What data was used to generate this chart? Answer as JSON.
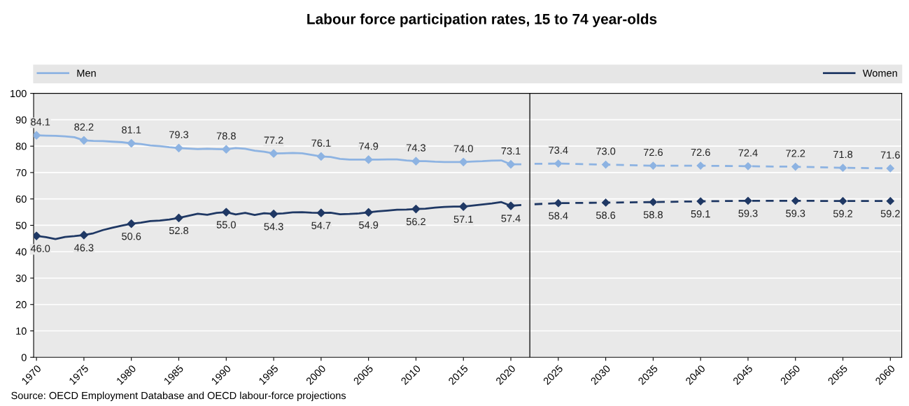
{
  "chart_data": {
    "type": "line",
    "title": "Labour force participation rates, 15 to 74 year-olds",
    "annotations": [
      "Source: OECD Employment Database and OECD labour-force projections"
    ],
    "xlim": [
      1969.7,
      2061.2
    ],
    "xticks": [
      1970,
      1975,
      1980,
      1985,
      1990,
      1995,
      2000,
      2005,
      2010,
      2015,
      2020,
      2025,
      2030,
      2035,
      2040,
      2045,
      2050,
      2055,
      2060
    ],
    "ylim": [
      0,
      100
    ],
    "yticks": [
      0,
      10,
      20,
      30,
      40,
      50,
      60,
      70,
      80,
      90,
      100
    ],
    "grid": "y",
    "legend": "top",
    "marker": "diamond",
    "ref_lines": [
      {
        "axis": "x",
        "value": 2022,
        "color": "#000000"
      }
    ],
    "series": [
      {
        "name": "Men",
        "color": "#8db3e2",
        "line_style": "solid",
        "marker": "none",
        "x": [
          1970,
          1971,
          1972,
          1973,
          1974,
          1975,
          1976,
          1977,
          1978,
          1979,
          1980,
          1981,
          1982,
          1983,
          1984,
          1985,
          1986,
          1987,
          1988,
          1989,
          1990,
          1991,
          1992,
          1993,
          1994,
          1995,
          1996,
          1997,
          1998,
          1999,
          2000,
          2001,
          2002,
          2003,
          2004,
          2005,
          2006,
          2007,
          2008,
          2009,
          2010,
          2011,
          2012,
          2013,
          2014,
          2015,
          2016,
          2017,
          2018,
          2019,
          2020,
          2021
        ],
        "values": [
          84.1,
          84.0,
          83.9,
          83.7,
          83.4,
          82.2,
          82.0,
          81.9,
          81.7,
          81.5,
          81.1,
          80.8,
          80.3,
          80.0,
          79.6,
          79.3,
          79.1,
          78.9,
          79.0,
          78.9,
          78.8,
          79.3,
          79.0,
          78.3,
          77.9,
          77.2,
          77.3,
          77.4,
          77.3,
          76.7,
          76.1,
          75.9,
          75.2,
          74.9,
          74.9,
          74.9,
          74.9,
          75.0,
          75.0,
          74.6,
          74.3,
          74.3,
          74.1,
          74.0,
          74.0,
          74.0,
          74.2,
          74.3,
          74.5,
          74.6,
          73.1,
          73.1
        ]
      },
      {
        "name": "Women",
        "color": "#1f3864",
        "line_style": "solid",
        "marker": "none",
        "x": [
          1970,
          1971,
          1972,
          1973,
          1974,
          1975,
          1976,
          1977,
          1978,
          1979,
          1980,
          1981,
          1982,
          1983,
          1984,
          1985,
          1986,
          1987,
          1988,
          1989,
          1990,
          1991,
          1992,
          1993,
          1994,
          1995,
          1996,
          1997,
          1998,
          1999,
          2000,
          2001,
          2002,
          2003,
          2004,
          2005,
          2006,
          2007,
          2008,
          2009,
          2010,
          2011,
          2012,
          2013,
          2014,
          2015,
          2016,
          2017,
          2018,
          2019,
          2020,
          2021
        ],
        "values": [
          46.0,
          45.5,
          44.8,
          45.6,
          45.9,
          46.3,
          47.0,
          48.2,
          49.1,
          49.9,
          50.6,
          51.0,
          51.6,
          51.8,
          52.2,
          52.8,
          53.6,
          54.4,
          54.0,
          54.7,
          55.0,
          54.1,
          54.7,
          53.9,
          54.6,
          54.3,
          54.5,
          54.9,
          55.0,
          54.8,
          54.7,
          54.8,
          54.2,
          54.3,
          54.5,
          54.9,
          55.3,
          55.6,
          55.9,
          56.0,
          56.2,
          56.3,
          56.7,
          57.0,
          57.1,
          57.1,
          57.5,
          57.9,
          58.3,
          58.8,
          57.4,
          57.7
        ]
      },
      {
        "type": "scatter",
        "color": "#8db3e2",
        "x": [
          1970,
          1975,
          1980,
          1985,
          1990,
          1995,
          2000,
          2005,
          2010,
          2015,
          2020
        ],
        "values": [
          84.1,
          82.2,
          81.1,
          79.3,
          78.8,
          77.2,
          76.1,
          74.9,
          74.3,
          74.0,
          73.1
        ],
        "value_labels": [
          "84.1",
          "82.2",
          "81.1",
          "79.3",
          "78.8",
          "77.2",
          "76.1",
          "74.9",
          "74.3",
          "74.0",
          "73.1"
        ]
      },
      {
        "type": "scatter",
        "color": "#1f3864",
        "x": [
          1970,
          1975,
          1980,
          1985,
          1990,
          1995,
          2000,
          2005,
          2010,
          2015,
          2020
        ],
        "values": [
          46.0,
          46.3,
          50.6,
          52.8,
          55.0,
          54.3,
          54.7,
          54.9,
          56.2,
          57.1,
          57.4
        ],
        "value_labels": [
          "46.0",
          "46.3",
          "50.6",
          "52.8",
          "55.0",
          "54.3",
          "54.7",
          "54.9",
          "56.2",
          "57.1",
          "57.4"
        ]
      },
      {
        "color": "#8db3e2",
        "line_style": "dashed",
        "x": [
          2022.5,
          2025,
          2030,
          2035,
          2040,
          2045,
          2050,
          2055,
          2060
        ],
        "values": [
          73.3,
          73.4,
          73.0,
          72.6,
          72.6,
          72.4,
          72.2,
          71.8,
          71.6
        ],
        "value_labels": [
          null,
          "73.4",
          "73.0",
          "72.6",
          "72.6",
          "72.4",
          "72.2",
          "71.8",
          "71.6"
        ]
      },
      {
        "color": "#1f3864",
        "line_style": "dashed",
        "x": [
          2022.5,
          2025,
          2030,
          2035,
          2040,
          2045,
          2050,
          2055,
          2060
        ],
        "values": [
          58.0,
          58.4,
          58.6,
          58.8,
          59.1,
          59.3,
          59.3,
          59.2,
          59.2
        ],
        "value_labels": [
          null,
          "58.4",
          "58.6",
          "58.8",
          "59.1",
          "59.3",
          "59.3",
          "59.2",
          "59.2"
        ]
      }
    ]
  }
}
